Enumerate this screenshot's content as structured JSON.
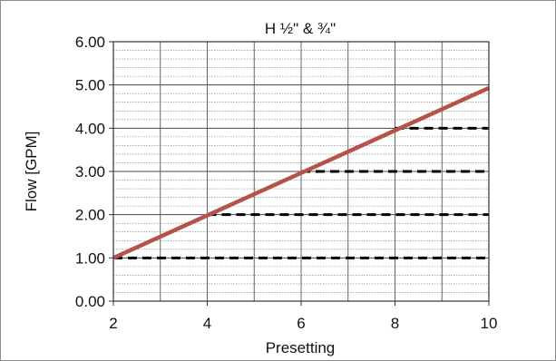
{
  "chart_data": {
    "type": "line",
    "title": "H ½\" & ¾\"",
    "xlabel": "Presetting",
    "ylabel": "Flow [GPM]",
    "xlim": [
      2,
      10
    ],
    "ylim": [
      0,
      6
    ],
    "x_ticks": [
      "2",
      "4",
      "6",
      "8",
      "10"
    ],
    "y_ticks": [
      "0.00",
      "1.00",
      "2.00",
      "3.00",
      "4.00",
      "5.00",
      "6.00"
    ],
    "grid": true,
    "series": [
      {
        "x": [
          2,
          10
        ],
        "y": [
          1.0,
          4.93
        ],
        "color": "#b5524a"
      }
    ],
    "reference_lines": [
      {
        "y": 1.0,
        "x_start": 2,
        "x_end": 10
      },
      {
        "y": 2.0,
        "x_start": 4,
        "x_end": 10
      },
      {
        "y": 3.0,
        "x_start": 6,
        "x_end": 10
      },
      {
        "y": 4.0,
        "x_start": 8,
        "x_end": 10
      }
    ]
  }
}
